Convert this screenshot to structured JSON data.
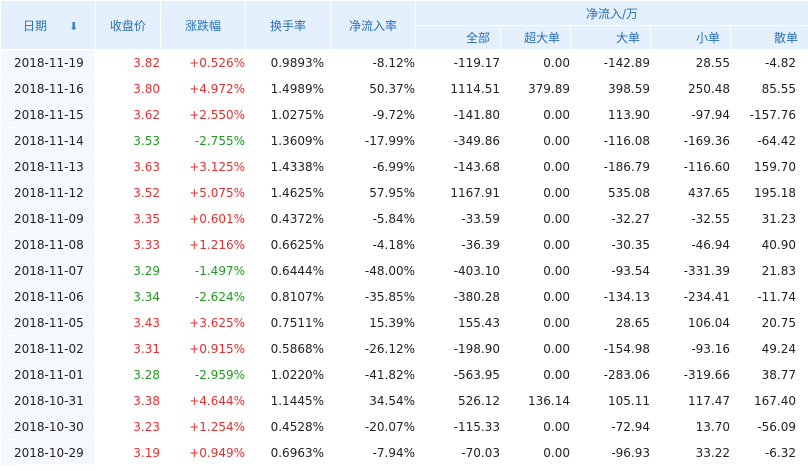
{
  "header": {
    "date": "日期",
    "close": "收盘价",
    "change": "涨跌幅",
    "turnover": "换手率",
    "net_inflow_rate": "净流入率",
    "net_inflow_group": "净流入/万",
    "sub": [
      "全部",
      "超大单",
      "大单",
      "小单",
      "散单"
    ]
  },
  "colors": {
    "up": "#e03030",
    "down": "#1e9b1e",
    "header_bg": "#e4f0fb",
    "header_text": "#2a6fb8"
  },
  "rows": [
    {
      "date": "2018-11-19",
      "close": "3.82",
      "change": "+0.526%",
      "turnover": "0.9893%",
      "rate": "-8.12%",
      "all": "-119.17",
      "xl": "0.00",
      "large": "-142.89",
      "small": "28.55",
      "retail": "-4.82",
      "dir": "up"
    },
    {
      "date": "2018-11-16",
      "close": "3.80",
      "change": "+4.972%",
      "turnover": "1.4989%",
      "rate": "50.37%",
      "all": "1114.51",
      "xl": "379.89",
      "large": "398.59",
      "small": "250.48",
      "retail": "85.55",
      "dir": "up"
    },
    {
      "date": "2018-11-15",
      "close": "3.62",
      "change": "+2.550%",
      "turnover": "1.0275%",
      "rate": "-9.72%",
      "all": "-141.80",
      "xl": "0.00",
      "large": "113.90",
      "small": "-97.94",
      "retail": "-157.76",
      "dir": "up"
    },
    {
      "date": "2018-11-14",
      "close": "3.53",
      "change": "-2.755%",
      "turnover": "1.3609%",
      "rate": "-17.99%",
      "all": "-349.86",
      "xl": "0.00",
      "large": "-116.08",
      "small": "-169.36",
      "retail": "-64.42",
      "dir": "down"
    },
    {
      "date": "2018-11-13",
      "close": "3.63",
      "change": "+3.125%",
      "turnover": "1.4338%",
      "rate": "-6.99%",
      "all": "-143.68",
      "xl": "0.00",
      "large": "-186.79",
      "small": "-116.60",
      "retail": "159.70",
      "dir": "up"
    },
    {
      "date": "2018-11-12",
      "close": "3.52",
      "change": "+5.075%",
      "turnover": "1.4625%",
      "rate": "57.95%",
      "all": "1167.91",
      "xl": "0.00",
      "large": "535.08",
      "small": "437.65",
      "retail": "195.18",
      "dir": "up"
    },
    {
      "date": "2018-11-09",
      "close": "3.35",
      "change": "+0.601%",
      "turnover": "0.4372%",
      "rate": "-5.84%",
      "all": "-33.59",
      "xl": "0.00",
      "large": "-32.27",
      "small": "-32.55",
      "retail": "31.23",
      "dir": "up"
    },
    {
      "date": "2018-11-08",
      "close": "3.33",
      "change": "+1.216%",
      "turnover": "0.6625%",
      "rate": "-4.18%",
      "all": "-36.39",
      "xl": "0.00",
      "large": "-30.35",
      "small": "-46.94",
      "retail": "40.90",
      "dir": "up"
    },
    {
      "date": "2018-11-07",
      "close": "3.29",
      "change": "-1.497%",
      "turnover": "0.6444%",
      "rate": "-48.00%",
      "all": "-403.10",
      "xl": "0.00",
      "large": "-93.54",
      "small": "-331.39",
      "retail": "21.83",
      "dir": "down"
    },
    {
      "date": "2018-11-06",
      "close": "3.34",
      "change": "-2.624%",
      "turnover": "0.8107%",
      "rate": "-35.85%",
      "all": "-380.28",
      "xl": "0.00",
      "large": "-134.13",
      "small": "-234.41",
      "retail": "-11.74",
      "dir": "down"
    },
    {
      "date": "2018-11-05",
      "close": "3.43",
      "change": "+3.625%",
      "turnover": "0.7511%",
      "rate": "15.39%",
      "all": "155.43",
      "xl": "0.00",
      "large": "28.65",
      "small": "106.04",
      "retail": "20.75",
      "dir": "up"
    },
    {
      "date": "2018-11-02",
      "close": "3.31",
      "change": "+0.915%",
      "turnover": "0.5868%",
      "rate": "-26.12%",
      "all": "-198.90",
      "xl": "0.00",
      "large": "-154.98",
      "small": "-93.16",
      "retail": "49.24",
      "dir": "up"
    },
    {
      "date": "2018-11-01",
      "close": "3.28",
      "change": "-2.959%",
      "turnover": "1.0220%",
      "rate": "-41.82%",
      "all": "-563.95",
      "xl": "0.00",
      "large": "-283.06",
      "small": "-319.66",
      "retail": "38.77",
      "dir": "down"
    },
    {
      "date": "2018-10-31",
      "close": "3.38",
      "change": "+4.644%",
      "turnover": "1.1445%",
      "rate": "34.54%",
      "all": "526.12",
      "xl": "136.14",
      "large": "105.11",
      "small": "117.47",
      "retail": "167.40",
      "dir": "up"
    },
    {
      "date": "2018-10-30",
      "close": "3.23",
      "change": "+1.254%",
      "turnover": "0.4528%",
      "rate": "-20.07%",
      "all": "-115.33",
      "xl": "0.00",
      "large": "-72.94",
      "small": "13.70",
      "retail": "-56.09",
      "dir": "up"
    },
    {
      "date": "2018-10-29",
      "close": "3.19",
      "change": "+0.949%",
      "turnover": "0.6963%",
      "rate": "-7.94%",
      "all": "-70.03",
      "xl": "0.00",
      "large": "-96.93",
      "small": "33.22",
      "retail": "-6.32",
      "dir": "up"
    }
  ]
}
